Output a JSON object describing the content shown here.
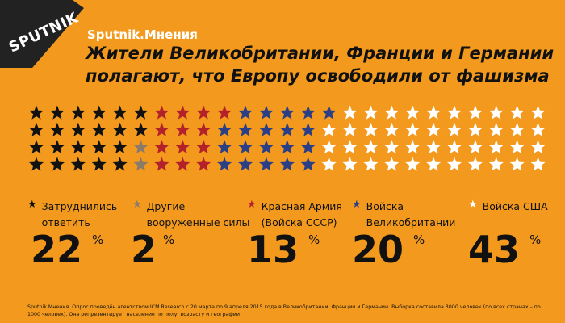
{
  "brand": "Sputnik.Мнения",
  "logo_text": "SPUTNIK",
  "title": "Жители Великобритании, Франции и Германии полагают, что Европу освободили от фашизма",
  "colors": {
    "background": "#f39a1e",
    "black": "#111111",
    "gray": "#8a7a6a",
    "red": "#b3222a",
    "blue": "#2b3f86",
    "white": "#ffffff"
  },
  "chart_data": {
    "type": "pictograph",
    "unit_note": "each star = 1%",
    "categories": [
      {
        "label": "Затруднились\nответить",
        "value": 22,
        "color": "#111111"
      },
      {
        "label": "Другие\nвооруженные силы",
        "value": 2,
        "color": "#8a7a6a"
      },
      {
        "label": "Красная Армия\n(Войска СССР)",
        "value": 13,
        "color": "#b3222a"
      },
      {
        "label": "Войска\nВеликобритании",
        "value": 20,
        "color": "#2b3f86"
      },
      {
        "label": "Войска США",
        "value": 43,
        "color": "#ffffff"
      }
    ],
    "percent_sign": "%"
  },
  "footer": "Sputnik.Мнения. Опрос проведён агентством ICM Research с 20 марта по 9 апреля 2015 года в Великобритании, Франции и Германии. Выборка составила 3000 человек (по всех странах – по 1000 человек). Она репрезентирует население по полу, возрасту и географии"
}
